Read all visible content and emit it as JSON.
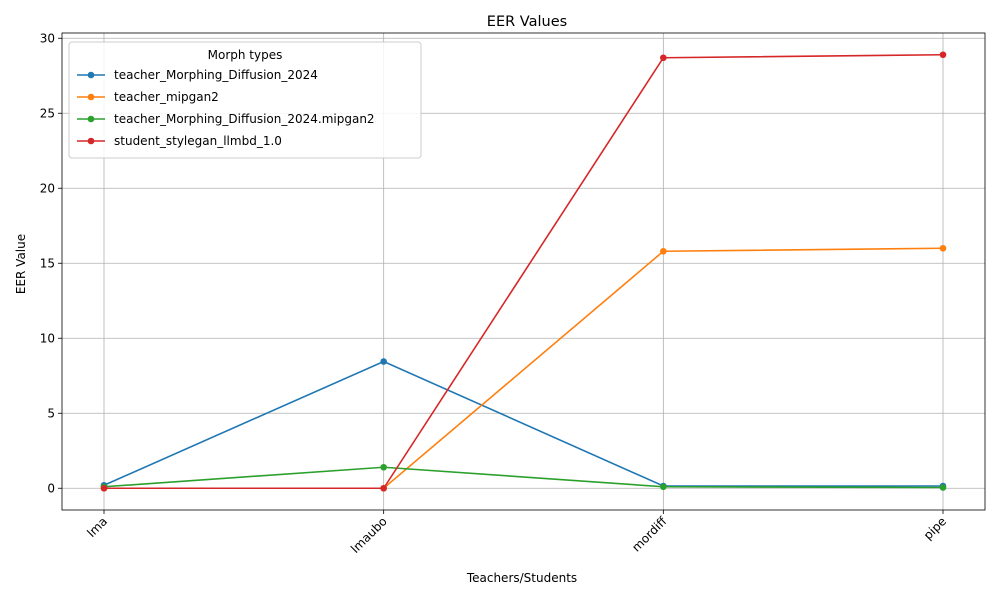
{
  "chart_data": {
    "type": "line",
    "title": "EER Values",
    "xlabel": "Teachers/Students",
    "ylabel": "EER Value",
    "categories": [
      "lma",
      "lmaubo",
      "mordiff",
      "pipe"
    ],
    "ylim": [
      -1.45,
      30.35
    ],
    "yticks": [
      0,
      5,
      10,
      15,
      20,
      25,
      30
    ],
    "grid": true,
    "legend": {
      "title": "Morph types",
      "position": "top-left"
    },
    "series": [
      {
        "name": "teacher_Morphing_Diffusion_2024",
        "color": "#1f77b4",
        "values": [
          0.2,
          8.45,
          0.15,
          0.15
        ]
      },
      {
        "name": "teacher_mipgan2",
        "color": "#ff7f0e",
        "values": [
          0.0,
          0.0,
          15.8,
          16.0
        ]
      },
      {
        "name": "teacher_Morphing_Diffusion_2024.mipgan2",
        "color": "#2ca02c",
        "values": [
          0.1,
          1.4,
          0.1,
          0.05
        ]
      },
      {
        "name": "student_stylegan_llmbd_1.0",
        "color": "#d62728",
        "values": [
          0.0,
          0.0,
          28.7,
          28.9
        ]
      }
    ]
  }
}
